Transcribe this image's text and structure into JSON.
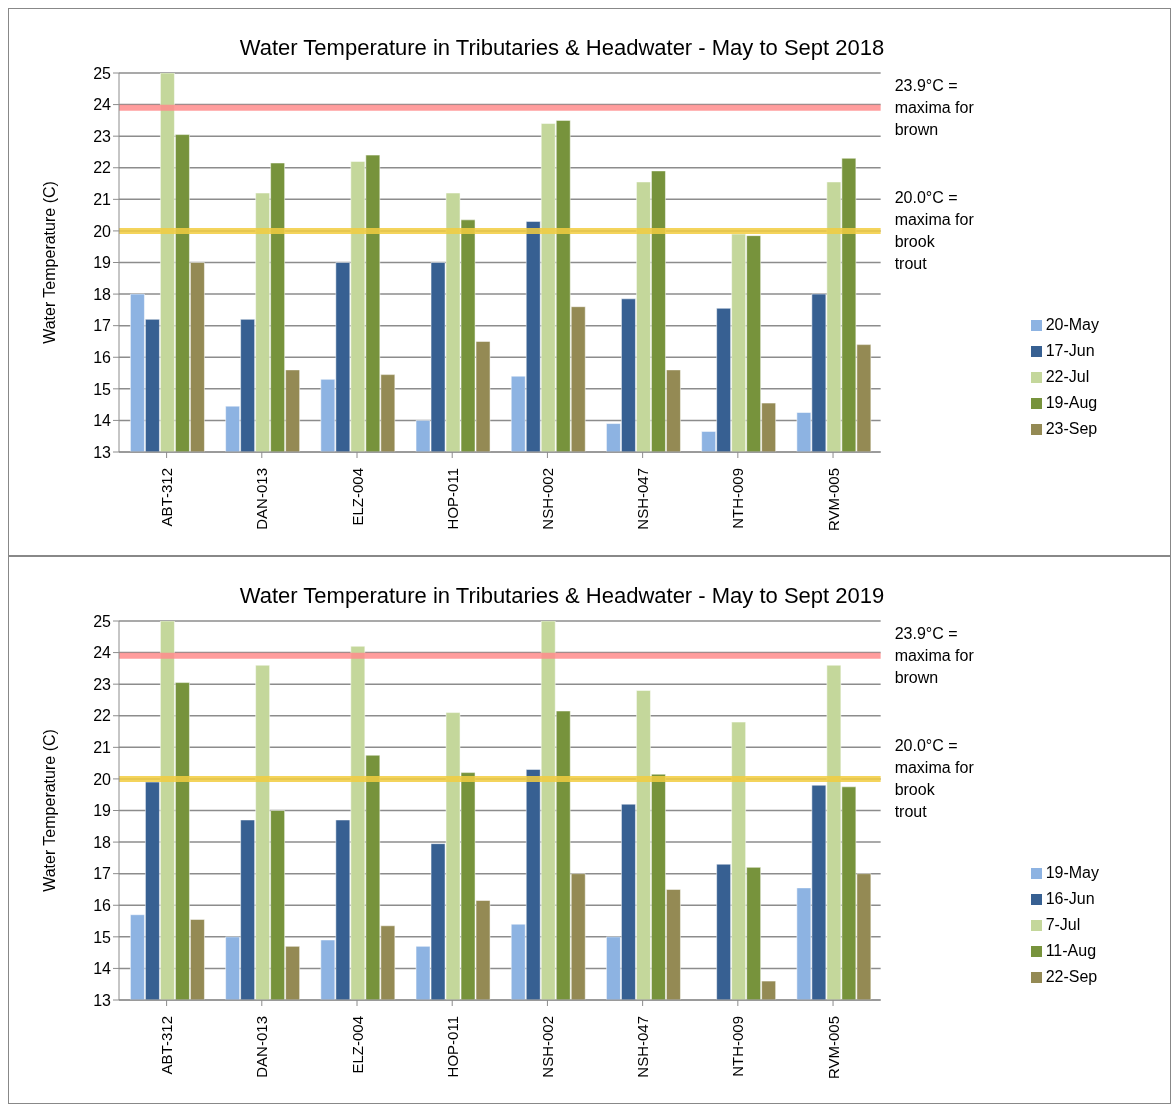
{
  "chart_data": [
    {
      "type": "bar",
      "title": "Water Temperature in Tributaries & Headwater - May to Sept 2018",
      "ylabel": "Water Temperature (C)",
      "categories": [
        "ABT-312",
        "DAN-013",
        "ELZ-004",
        "HOP-011",
        "NSH-002",
        "NSH-047",
        "NTH-009",
        "RVM-005"
      ],
      "series": [
        {
          "name": "20-May",
          "color": "#8db3e2",
          "values": [
            18.0,
            14.45,
            15.3,
            14.0,
            15.4,
            13.9,
            13.65,
            14.25
          ]
        },
        {
          "name": "17-Jun",
          "color": "#376092",
          "values": [
            17.2,
            17.2,
            19.0,
            19.0,
            20.3,
            17.85,
            17.55,
            18.0
          ]
        },
        {
          "name": "22-Jul",
          "color": "#c4d79b",
          "values": [
            25,
            21.2,
            22.2,
            21.2,
            23.4,
            21.55,
            19.9,
            21.55
          ]
        },
        {
          "name": "19-Aug",
          "color": "#77933c",
          "values": [
            23.05,
            22.15,
            22.4,
            20.35,
            23.5,
            21.9,
            19.85,
            22.3
          ]
        },
        {
          "name": "23-Sep",
          "color": "#948a54",
          "values": [
            19.0,
            15.6,
            15.45,
            16.5,
            17.6,
            15.6,
            14.55,
            16.4
          ]
        }
      ],
      "ylim": [
        13,
        25
      ],
      "yticks": [
        13,
        14,
        15,
        16,
        17,
        18,
        19,
        20,
        21,
        22,
        23,
        24,
        25
      ],
      "grid": "y",
      "legend": "right",
      "ref_lines": [
        {
          "axis": "y",
          "value": 23.9,
          "label": "23.9°C = maxima for brown",
          "color": "#ff8c8c"
        },
        {
          "axis": "y",
          "value": 20,
          "label": "20.0°C = maxima for brook trout",
          "color": "#f2cc40"
        }
      ]
    },
    {
      "type": "bar",
      "title": "Water Temperature in Tributaries & Headwater - May to Sept 2019",
      "ylabel": "Water Temperature (C)",
      "categories": [
        "ABT-312",
        "DAN-013",
        "ELZ-004",
        "HOP-011",
        "NSH-002",
        "NSH-047",
        "NTH-009",
        "RVM-005"
      ],
      "series": [
        {
          "name": "19-May",
          "color": "#8db3e2",
          "values": [
            15.7,
            15.0,
            14.9,
            14.7,
            15.4,
            15.0,
            null,
            16.55
          ]
        },
        {
          "name": "16-Jun",
          "color": "#376092",
          "values": [
            19.9,
            18.7,
            18.7,
            17.95,
            20.3,
            19.2,
            17.3,
            19.8
          ]
        },
        {
          "name": "7-Jul",
          "color": "#c4d79b",
          "values": [
            25,
            23.6,
            24.2,
            22.1,
            25,
            22.8,
            21.8,
            23.6
          ]
        },
        {
          "name": "11-Aug",
          "color": "#77933c",
          "values": [
            23.05,
            19.0,
            20.75,
            20.2,
            22.15,
            20.15,
            17.2,
            19.75
          ]
        },
        {
          "name": "22-Sep",
          "color": "#948a54",
          "values": [
            15.55,
            14.7,
            15.35,
            16.15,
            17.0,
            16.5,
            13.6,
            17.0
          ]
        }
      ],
      "ylim": [
        13,
        25
      ],
      "yticks": [
        13,
        14,
        15,
        16,
        17,
        18,
        19,
        20,
        21,
        22,
        23,
        24,
        25
      ],
      "grid": "y",
      "legend": "right",
      "ref_lines": [
        {
          "axis": "y",
          "value": 23.9,
          "label": "23.9°C = maxima for brown",
          "color": "#ff8c8c"
        },
        {
          "axis": "y",
          "value": 20,
          "label": "20.0°C = maxima for brook trout",
          "color": "#f2cc40"
        }
      ]
    }
  ]
}
